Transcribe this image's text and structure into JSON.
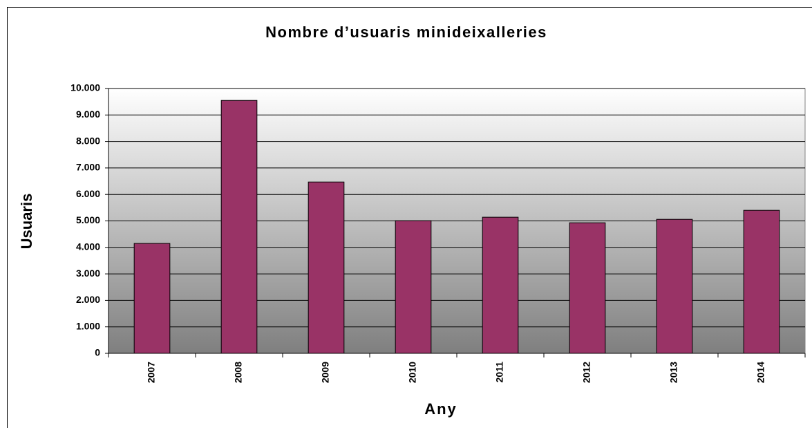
{
  "chart_data": {
    "type": "bar",
    "title": "Nombre d’usuaris minideixalleries",
    "x_label": "Any",
    "y_label": "Usuaris",
    "categories": [
      "2007",
      "2008",
      "2009",
      "2010",
      "2011",
      "2012",
      "2013",
      "2014"
    ],
    "values": [
      4150,
      9550,
      6470,
      5010,
      5140,
      4930,
      5060,
      5400
    ],
    "color": "#993366",
    "ylim": [
      0,
      10000
    ],
    "yticks": [
      0,
      {
        "value": 1000,
        "label": "1.000"
      },
      {
        "value": 2000,
        "label": "2.000"
      },
      {
        "value": 3000,
        "label": "3.000"
      },
      {
        "value": 4000,
        "label": "4.000"
      },
      {
        "value": 5000,
        "label": "5.000"
      },
      {
        "value": 6000,
        "label": "6.000"
      },
      {
        "value": 7000,
        "label": "7.000"
      },
      {
        "value": 8000,
        "label": "8.000"
      },
      {
        "value": 9000,
        "label": "9.000"
      },
      {
        "value": 10000,
        "label": "10.000"
      }
    ],
    "grid": true
  }
}
